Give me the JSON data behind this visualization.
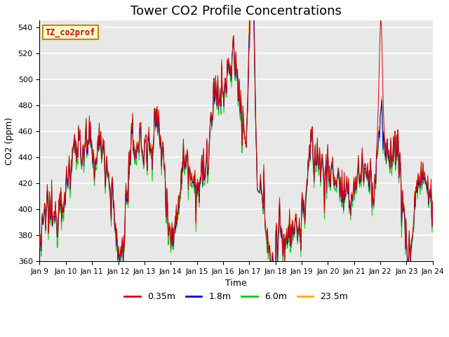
{
  "title": "Tower CO2 Profile Concentrations",
  "xlabel": "Time",
  "ylabel": "CO2 (ppm)",
  "ylim": [
    360,
    545
  ],
  "yticks": [
    360,
    380,
    400,
    420,
    440,
    460,
    480,
    500,
    520,
    540
  ],
  "xtick_labels": [
    "Jan 9",
    "Jan 10",
    "Jan 11",
    "Jan 12",
    "Jan 13",
    "Jan 14",
    "Jan 15",
    "Jan 16",
    "Jan 17",
    "Jan 18",
    "Jan 19",
    "Jan 20",
    "Jan 21",
    "Jan 22",
    "Jan 23",
    "Jan 24"
  ],
  "series_colors": [
    "#dd0000",
    "#0000dd",
    "#00cc00",
    "#ffaa00"
  ],
  "series_labels": [
    "0.35m",
    "1.8m",
    "6.0m",
    "23.5m"
  ],
  "line_width": 0.7,
  "tag_text": "TZ_co2prof",
  "tag_facecolor": "#ffffcc",
  "tag_edgecolor": "#cc8800",
  "tag_textcolor": "#cc0000",
  "fig_facecolor": "#ffffff",
  "plot_bg_color": "#e8e8e8",
  "grid_color": "#ffffff",
  "title_fontsize": 13,
  "seed": 12345
}
